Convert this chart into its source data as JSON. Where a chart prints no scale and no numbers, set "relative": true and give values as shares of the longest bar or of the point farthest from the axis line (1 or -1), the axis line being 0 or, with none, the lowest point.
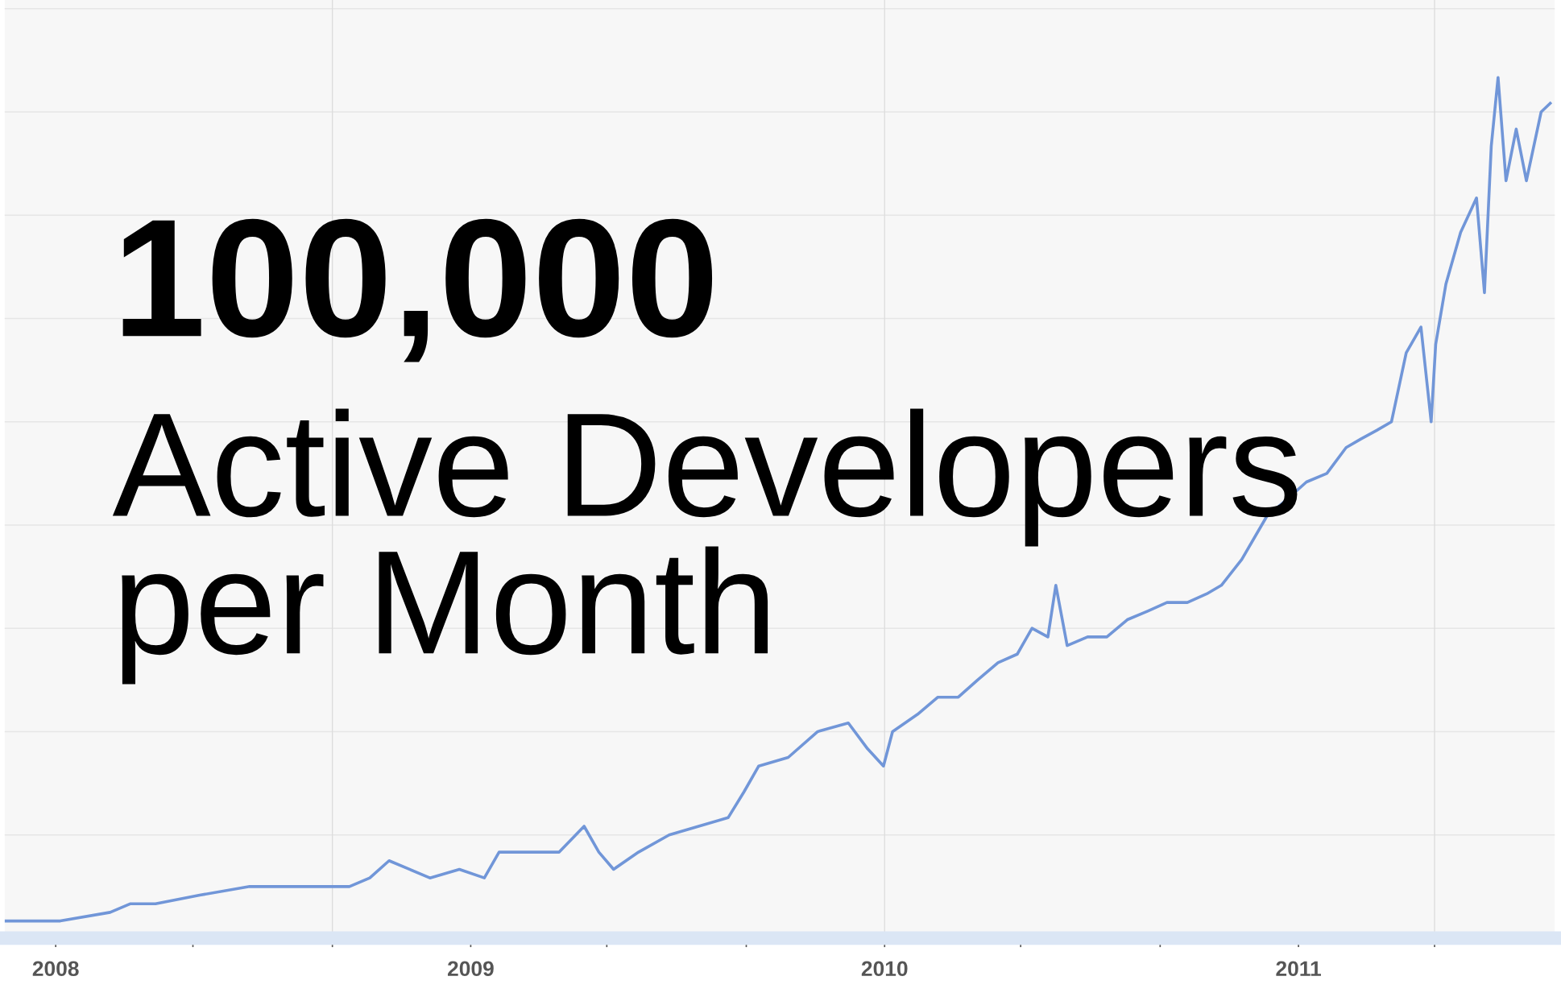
{
  "chart_data": {
    "type": "line",
    "relative": true,
    "grid": true,
    "marker": "none",
    "line_style": "solid",
    "annotations": [
      "100,000",
      "Active Developers\nper Month"
    ],
    "xlim": [
      "2007-11-17",
      "2011-08-15"
    ],
    "xticks": [
      {
        "value": "2008-01-01",
        "label": "2008"
      },
      {
        "value": "2008-05-01",
        "label": null
      },
      {
        "value": "2008-09-01",
        "label": null
      },
      {
        "value": "2009-01-01",
        "label": "2009"
      },
      {
        "value": "2009-05-01",
        "label": null
      },
      {
        "value": "2009-09-01",
        "label": null
      },
      {
        "value": "2010-01-01",
        "label": "2010"
      },
      {
        "value": "2010-05-01",
        "label": null
      },
      {
        "value": "2010-09-01",
        "label": null
      },
      {
        "value": "2011-01-01",
        "label": "2011"
      },
      {
        "value": "2011-05-01",
        "label": null
      }
    ],
    "x": [
      "2007-11-18",
      "2008-01-05",
      "2008-02-18",
      "2008-03-07",
      "2008-03-29",
      "2008-05-07",
      "2008-06-20",
      "2008-08-03",
      "2008-09-16",
      "2008-10-04",
      "2008-10-21",
      "2008-11-08",
      "2008-11-26",
      "2008-12-22",
      "2009-01-13",
      "2009-01-26",
      "2009-02-22",
      "2009-03-20",
      "2009-04-11",
      "2009-04-24",
      "2009-05-07",
      "2009-05-29",
      "2009-06-25",
      "2009-07-21",
      "2009-08-16",
      "2009-08-30",
      "2009-09-12",
      "2009-10-08",
      "2009-11-03",
      "2009-11-30",
      "2009-12-17",
      "2009-12-31",
      "2010-01-08",
      "2010-01-30",
      "2010-02-17",
      "2010-03-07",
      "2010-03-24",
      "2010-04-11",
      "2010-04-28",
      "2010-05-11",
      "2010-05-25",
      "2010-06-01",
      "2010-06-11",
      "2010-06-29",
      "2010-07-16",
      "2010-08-03",
      "2010-08-21",
      "2010-09-07",
      "2010-09-25",
      "2010-10-12",
      "2010-10-25",
      "2010-11-12",
      "2010-12-04",
      "2010-12-22",
      "2011-01-08",
      "2011-01-26",
      "2011-02-12",
      "2011-02-25",
      "2011-03-11",
      "2011-03-24",
      "2011-04-06",
      "2011-04-19",
      "2011-04-28",
      "2011-05-02",
      "2011-05-11",
      "2011-05-24",
      "2011-06-07",
      "2011-06-14",
      "2011-06-20",
      "2011-06-26",
      "2011-07-03",
      "2011-07-12",
      "2011-07-21",
      "2011-08-03",
      "2011-08-11"
    ],
    "series": [
      {
        "color": "#7196d8",
        "values": [
          0.02,
          0.02,
          0.03,
          0.04,
          0.04,
          0.05,
          0.06,
          0.06,
          0.06,
          0.07,
          0.09,
          0.08,
          0.07,
          0.08,
          0.07,
          0.1,
          0.1,
          0.1,
          0.13,
          0.1,
          0.08,
          0.1,
          0.12,
          0.13,
          0.14,
          0.17,
          0.2,
          0.21,
          0.24,
          0.25,
          0.22,
          0.2,
          0.24,
          0.26,
          0.28,
          0.28,
          0.3,
          0.32,
          0.33,
          0.36,
          0.35,
          0.41,
          0.34,
          0.35,
          0.35,
          0.37,
          0.38,
          0.39,
          0.39,
          0.4,
          0.41,
          0.44,
          0.49,
          0.51,
          0.53,
          0.54,
          0.57,
          0.58,
          0.59,
          0.6,
          0.68,
          0.71,
          0.6,
          0.69,
          0.76,
          0.82,
          0.86,
          0.75,
          0.92,
          1.0,
          0.88,
          0.94,
          0.88,
          0.96,
          0.97
        ]
      }
    ]
  }
}
